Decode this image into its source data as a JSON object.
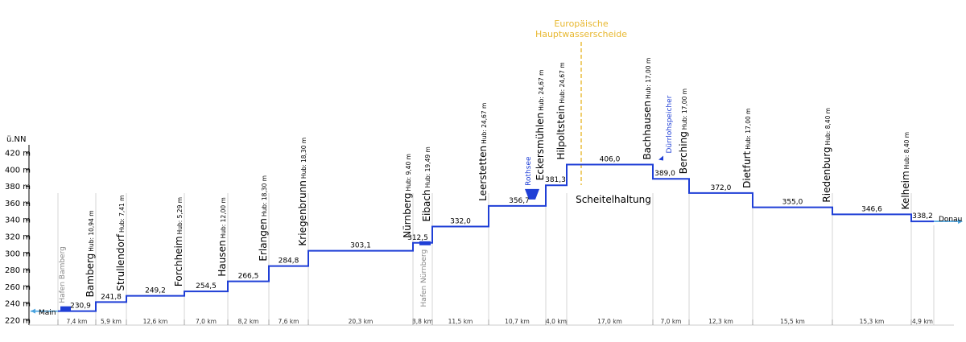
{
  "axis": {
    "unit_label": "ü.NN",
    "ticks": [
      "220 m",
      "240 m",
      "260 m",
      "280 m",
      "300 m",
      "320 m",
      "340 m",
      "360 m",
      "380 m",
      "400 m",
      "420 m"
    ]
  },
  "rivers": {
    "left": "Main",
    "right": "Donau"
  },
  "harbors": [
    {
      "name": "Hafen Bamberg",
      "elev": 230.9
    },
    {
      "name": "Hafen Nürnberg",
      "elev": 312.5
    }
  ],
  "reservoirs": [
    {
      "name": "Rothsee",
      "elev": 356.7
    },
    {
      "name": "Dürrlohspeicher",
      "elev": 406.0
    }
  ],
  "divide": {
    "line1": "Europäische",
    "line2": "Hauptwasserscheide",
    "color": "#e8b830"
  },
  "summit_label": "Scheitelhaltung",
  "colors": {
    "line": "#1f3fd6",
    "river": "#4aa3df",
    "harbor_text": "#888888",
    "reservoir_text": "#1f3fd6"
  },
  "chart_data": {
    "type": "line",
    "ylabel": "ü.NN",
    "ylim": [
      220,
      420
    ],
    "pools": [
      230.9,
      241.8,
      249.2,
      254.5,
      266.5,
      284.8,
      303.1,
      312.5,
      332.0,
      356.7,
      381.3,
      406.0,
      389.0,
      372.0,
      355.0,
      346.6,
      338.2
    ],
    "pool_labels": [
      "230,9",
      "241,8",
      "249,2",
      "254,5",
      "266,5",
      "284,8",
      "303,1",
      "312,5",
      "332,0",
      "356,7",
      "381,3",
      "406,0",
      "389,0",
      "372,0",
      "355,0",
      "346,6",
      "338,2"
    ],
    "distances": [
      "7,4 km",
      "5,9 km",
      "12,6 km",
      "7,0 km",
      "8,2 km",
      "7,6 km",
      "20,3 km",
      "3,8 km",
      "11,5 km",
      "10,7 km",
      "4,0 km",
      "17,0 km",
      "7,0 km",
      "12,3 km",
      "15,5 km",
      "15,3 km",
      "4,9 km"
    ],
    "locks": [
      {
        "name": "Bamberg",
        "lift": "Hub: 10,94 m"
      },
      {
        "name": "Strullendorf",
        "lift": "Hub: 7,41 m"
      },
      {
        "name": "Forchheim",
        "lift": "Hub: 5,29 m"
      },
      {
        "name": "Hausen",
        "lift": "Hub: 12,00 m"
      },
      {
        "name": "Erlangen",
        "lift": "Hub: 18,30 m"
      },
      {
        "name": "Kriegenbrunn",
        "lift": "Hub: 18,30 m"
      },
      {
        "name": "Nürnberg",
        "lift": "Hub: 9,40 m"
      },
      {
        "name": "Eibach",
        "lift": "Hub: 19,49 m"
      },
      {
        "name": "Leerstetten",
        "lift": "Hub: 24,67 m"
      },
      {
        "name": "Eckersmühlen",
        "lift": "Hub: 24,67 m"
      },
      {
        "name": "Hilpoltstein",
        "lift": "Hub: 24,67 m"
      },
      {
        "name": "Bachhausen",
        "lift": "Hub: 17,00 m"
      },
      {
        "name": "Berching",
        "lift": "Hub: 17,00 m"
      },
      {
        "name": "Dietfurt",
        "lift": "Hub: 17,00 m"
      },
      {
        "name": "Riedenburg",
        "lift": "Hub: 8,40 m"
      },
      {
        "name": "Kelheim",
        "lift": "Hub: 8,40 m"
      }
    ]
  }
}
